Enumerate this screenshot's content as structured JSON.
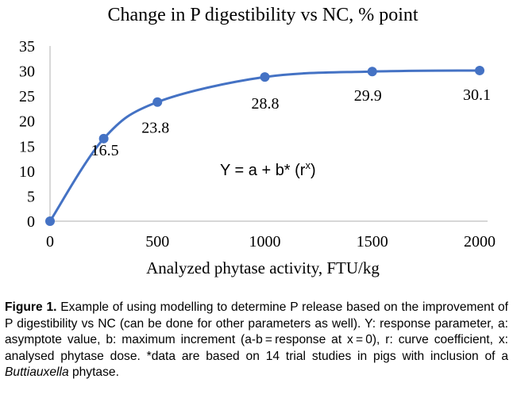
{
  "chart_data": {
    "type": "line",
    "title": "Change in P digestibility vs NC, % point",
    "xlabel": "Analyzed phytase activity, FTU/kg",
    "ylabel": "",
    "xlim": [
      0,
      2000
    ],
    "ylim": [
      0,
      35
    ],
    "x_ticks": [
      0,
      500,
      1000,
      1500,
      2000
    ],
    "y_ticks": [
      0,
      5,
      10,
      15,
      20,
      25,
      30,
      35
    ],
    "grid": false,
    "smooth": true,
    "series": [
      {
        "name": "Change in P digestibility",
        "color": "#4472c4",
        "points": [
          {
            "x": 0,
            "y": 0,
            "label": ""
          },
          {
            "x": 250,
            "y": 16.5,
            "label": "16.5"
          },
          {
            "x": 500,
            "y": 23.8,
            "label": "23.8"
          },
          {
            "x": 1000,
            "y": 28.8,
            "label": "28.8"
          },
          {
            "x": 1500,
            "y": 29.9,
            "label": "29.9"
          },
          {
            "x": 2000,
            "y": 30.1,
            "label": "30.1"
          }
        ]
      }
    ],
    "annotation": {
      "text": "Y = a + b* (r",
      "superscript": "x",
      "suffix": ")"
    }
  },
  "caption": {
    "label": "Figure 1.",
    "text_before_italic": " Example of using modelling to determine P release based on the improvement of P digestibility vs NC (can be done for other parameters as well). Y: response parameter, a: asymptote value, b: maximum increment (a-b = response at x = 0), r: curve coefficient, x: analysed phytase dose. *data are based on 14 trial studies in pigs with inclusion of a ",
    "italic_text": "Buttiauxella",
    "text_after_italic": " phytase."
  }
}
